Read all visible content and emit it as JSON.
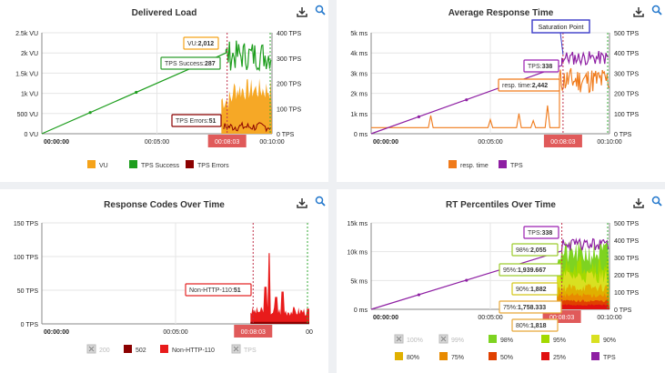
{
  "charts": [
    {
      "title": "Delivered Load",
      "y_left_ticks": [
        "0 VU",
        "500 VU",
        "1k VU",
        "1.5k VU",
        "2k VU",
        "2.5k VU"
      ],
      "y_right_ticks": [
        "0 TPS",
        "100 TPS",
        "200 TPS",
        "300 TPS",
        "400 TPS"
      ],
      "x_ticks": [
        "00:00:00",
        "00:05:00",
        "00:10:00"
      ],
      "cursor_time": "00:08:03",
      "tooltips": [
        {
          "name": "VU",
          "label": "VU:",
          "value": "2,012",
          "color": "#f5a31a"
        },
        {
          "name": "TPS Success",
          "label": "TPS Success:",
          "value": "287",
          "color": "#2f9e2f"
        },
        {
          "name": "TPS Errors",
          "label": "TPS Errors:",
          "value": "51",
          "color": "#8b0000"
        }
      ],
      "legend": [
        {
          "label": "VU",
          "color": "#f5a31a"
        },
        {
          "label": "TPS Success",
          "color": "#1e9e1e"
        },
        {
          "label": "TPS Errors",
          "color": "#8b0000"
        }
      ]
    },
    {
      "title": "Average Response Time",
      "y_left_ticks": [
        "0 ms",
        "1k ms",
        "2k ms",
        "3k ms",
        "4k ms",
        "5k ms"
      ],
      "y_right_ticks": [
        "0 TPS",
        "100 TPS",
        "200 TPS",
        "300 TPS",
        "400 TPS",
        "500 TPS"
      ],
      "x_ticks": [
        "00:00:00",
        "00:05:00",
        "00:10:00"
      ],
      "cursor_time": "00:08:03",
      "annotation": "Saturation Point",
      "tooltips": [
        {
          "name": "TPS",
          "label": "TPS:",
          "value": "338",
          "color": "#9b1fb0"
        },
        {
          "name": "resp. time",
          "label": "resp. time:",
          "value": "2,442",
          "color": "#f07a1a"
        }
      ],
      "legend": [
        {
          "label": "resp. time",
          "color": "#f07a1a"
        },
        {
          "label": "TPS",
          "color": "#8e1fa3"
        }
      ]
    },
    {
      "title": "Response Codes Over Time",
      "y_left_ticks": [
        "0 TPS",
        "50 TPS",
        "100 TPS",
        "150 TPS"
      ],
      "x_ticks": [
        "00:00:00",
        "00:05:00",
        "00"
      ],
      "cursor_time": "00:08:03",
      "tooltips": [
        {
          "name": "Non-HTTP-110",
          "label": "Non-HTTP-110:",
          "value": "51",
          "color": "#e32626"
        }
      ],
      "legend": [
        {
          "label": "200",
          "color": "#cccccc",
          "disabled": true
        },
        {
          "label": "502",
          "color": "#8b0000",
          "disabled": false
        },
        {
          "label": "Non-HTTP-110",
          "color": "#e81b1b",
          "disabled": false
        },
        {
          "label": "TPS",
          "color": "#cccccc",
          "disabled": true
        }
      ]
    },
    {
      "title": "RT Percentiles Over Time",
      "y_left_ticks": [
        "0 ms",
        "5k ms",
        "10k ms",
        "15k ms"
      ],
      "y_right_ticks": [
        "0 TPS",
        "100 TPS",
        "200 TPS",
        "300 TPS",
        "400 TPS",
        "500 TPS"
      ],
      "x_ticks": [
        "00:00:00",
        "00:05:00",
        "00:10:00"
      ],
      "cursor_time": "00:08:03",
      "tooltips": [
        {
          "name": "TPS",
          "label": "TPS:",
          "value": "338",
          "color": "#9b1fb0"
        },
        {
          "name": "98%",
          "label": "98%:",
          "value": "2,055",
          "color": "#9ccc2c"
        },
        {
          "name": "95%",
          "label": "95%:",
          "value": "1,939.667",
          "color": "#9ccc2c"
        },
        {
          "name": "90%",
          "label": "90%:",
          "value": "1,882",
          "color": "#d4c81a"
        },
        {
          "name": "75%",
          "label": "75%:",
          "value": "1,758.333",
          "color": "#e8a838"
        },
        {
          "name": "80%",
          "label": "80%:",
          "value": "1,818",
          "color": "#e8a838"
        }
      ],
      "legend_row1": [
        {
          "label": "100%",
          "color": "#cccccc",
          "disabled": true
        },
        {
          "label": "99%",
          "color": "#cccccc",
          "disabled": true
        },
        {
          "label": "98%",
          "color": "#7ed321",
          "disabled": false
        },
        {
          "label": "95%",
          "color": "#a3d900",
          "disabled": false
        },
        {
          "label": "90%",
          "color": "#d9e021",
          "disabled": false
        }
      ],
      "legend_row2": [
        {
          "label": "80%",
          "color": "#e0b000",
          "disabled": false
        },
        {
          "label": "75%",
          "color": "#e88a00",
          "disabled": false
        },
        {
          "label": "50%",
          "color": "#e04000",
          "disabled": false
        },
        {
          "label": "25%",
          "color": "#e01010",
          "disabled": false
        },
        {
          "label": "TPS",
          "color": "#8e1fa3",
          "disabled": false
        }
      ]
    }
  ],
  "chart_data": [
    {
      "type": "area",
      "title": "Delivered Load",
      "x_range": [
        "00:00:00",
        "00:10:00"
      ],
      "y_left_range_vu": [
        0,
        2500
      ],
      "y_right_range_tps": [
        0,
        400
      ],
      "series": [
        {
          "name": "VU",
          "axis": "left",
          "x_min": [
            0,
            1,
            2,
            3,
            4,
            5,
            6,
            7,
            8,
            8.05,
            9,
            10
          ],
          "values": [
            0,
            250,
            500,
            750,
            1000,
            1250,
            1500,
            1750,
            2000,
            2012,
            2250,
            2500
          ]
        },
        {
          "name": "TPS Success",
          "axis": "right",
          "x_min": [
            8.0,
            8.2,
            8.5,
            8.8,
            9.0,
            9.3,
            9.6,
            9.9
          ],
          "values": [
            100,
            287,
            340,
            300,
            360,
            320,
            380,
            400
          ]
        },
        {
          "name": "TPS Errors",
          "axis": "right",
          "x_min": [
            8.0,
            8.2,
            8.5,
            8.8,
            9.0,
            9.3,
            9.6,
            9.9
          ],
          "values": [
            10,
            51,
            30,
            25,
            20,
            15,
            20,
            10
          ]
        }
      ]
    },
    {
      "type": "line",
      "title": "Average Response Time",
      "x_range": [
        "00:00:00",
        "00:10:00"
      ],
      "y_left_range_ms": [
        0,
        5000
      ],
      "y_right_range_tps": [
        0,
        500
      ],
      "series": [
        {
          "name": "resp. time",
          "axis": "left",
          "x_min": [
            0,
            1,
            2,
            3,
            4,
            5,
            6,
            7,
            7.5,
            8,
            8.05,
            8.5,
            9,
            9.5,
            10
          ],
          "values": [
            300,
            300,
            300,
            300,
            300,
            300,
            350,
            400,
            1200,
            1800,
            2442,
            3000,
            3200,
            2900,
            2500
          ]
        },
        {
          "name": "TPS",
          "axis": "right",
          "x_min": [
            0,
            1,
            2,
            3,
            4,
            5,
            6,
            7,
            8,
            8.05,
            9,
            10
          ],
          "values": [
            0,
            50,
            100,
            150,
            200,
            250,
            300,
            330,
            338,
            338,
            380,
            390
          ]
        }
      ]
    },
    {
      "type": "area",
      "title": "Response Codes Over Time",
      "x_range": [
        "00:00:00",
        "00:10:00"
      ],
      "y_left_range_tps": [
        0,
        150
      ],
      "series": [
        {
          "name": "Non-HTTP-110",
          "x_min": [
            8.0,
            8.05,
            8.4,
            8.7,
            9.0,
            9.3,
            9.6,
            9.9
          ],
          "values": [
            20,
            51,
            100,
            60,
            40,
            30,
            25,
            20
          ]
        },
        {
          "name": "502",
          "x_min": [
            8.0,
            9.0,
            9.9
          ],
          "values": [
            5,
            5,
            5
          ]
        }
      ]
    },
    {
      "type": "area",
      "title": "RT Percentiles Over Time",
      "x_range": [
        "00:00:00",
        "00:10:00"
      ],
      "y_left_range_ms": [
        0,
        15000
      ],
      "y_right_range_tps": [
        0,
        500
      ],
      "series": [
        {
          "name": "98%",
          "values_at_cursor": 2055
        },
        {
          "name": "95%",
          "values_at_cursor": 1939.667
        },
        {
          "name": "90%",
          "values_at_cursor": 1882
        },
        {
          "name": "80%",
          "values_at_cursor": 1818
        },
        {
          "name": "75%",
          "values_at_cursor": 1758.333
        },
        {
          "name": "TPS",
          "values_at_cursor": 338
        }
      ]
    }
  ]
}
